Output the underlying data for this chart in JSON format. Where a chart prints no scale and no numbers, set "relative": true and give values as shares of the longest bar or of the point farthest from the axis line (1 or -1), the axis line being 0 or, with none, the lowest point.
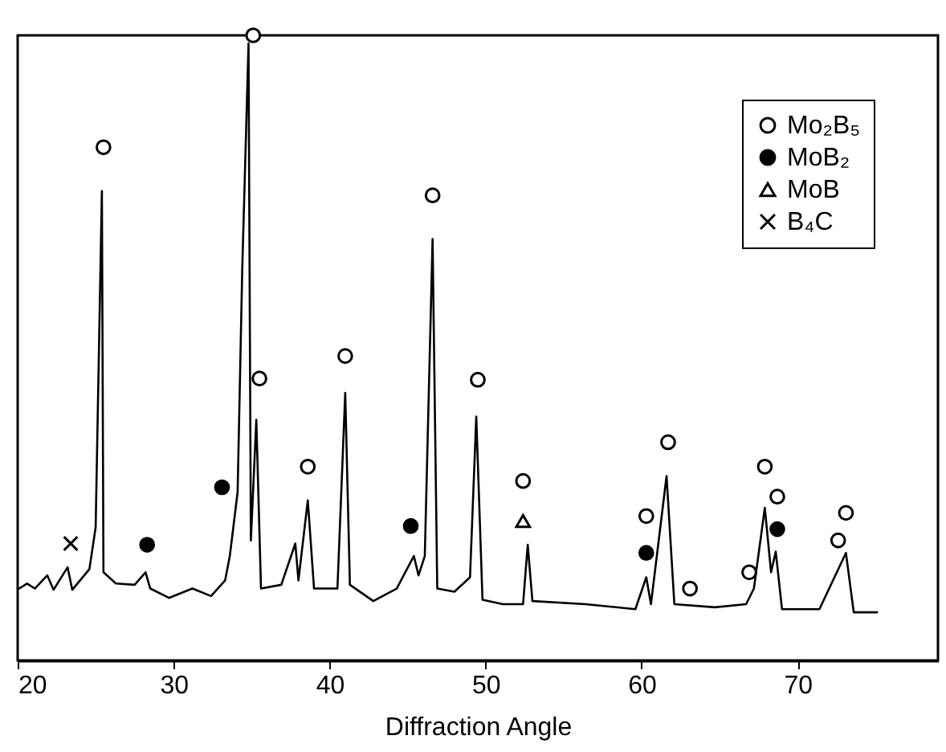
{
  "chart_data": {
    "type": "line",
    "xlabel": "Diffraction Angle",
    "relative": true,
    "xlim": [
      20,
      79
    ],
    "xticks": [
      20,
      30,
      40,
      50,
      60,
      70
    ],
    "grid": false,
    "legend": "top right",
    "series": [
      {
        "color": "#000000",
        "x": [
          20.1,
          20.6,
          21.1,
          21.9,
          22.3,
          23.2,
          23.5,
          24.6,
          25.0,
          25.4,
          25.5,
          26.3,
          27.5,
          28.2,
          28.5,
          29.7,
          31.2,
          32.4,
          33.3,
          33.6,
          34.1,
          34.4,
          34.8,
          34.95,
          35.3,
          35.6,
          36.9,
          37.8,
          38.0,
          38.6,
          39.0,
          40.5,
          41.0,
          41.3,
          42.8,
          44.3,
          45.4,
          45.7,
          46.1,
          46.6,
          46.9,
          48.0,
          49.0,
          49.4,
          49.8,
          51.1,
          52.4,
          52.7,
          53.0,
          56.4,
          59.6,
          60.3,
          60.6,
          61.6,
          62.1,
          64.7,
          66.7,
          67.2,
          67.9,
          68.3,
          68.6,
          69.0,
          71.4,
          73.1,
          73.6,
          75.1
        ],
        "values": [
          0.115,
          0.123,
          0.115,
          0.136,
          0.113,
          0.149,
          0.113,
          0.146,
          0.213,
          0.751,
          0.141,
          0.123,
          0.121,
          0.141,
          0.115,
          0.1,
          0.115,
          0.103,
          0.128,
          0.167,
          0.269,
          0.628,
          0.987,
          0.192,
          0.385,
          0.115,
          0.121,
          0.187,
          0.128,
          0.256,
          0.115,
          0.115,
          0.428,
          0.121,
          0.095,
          0.115,
          0.167,
          0.136,
          0.167,
          0.674,
          0.115,
          0.11,
          0.133,
          0.39,
          0.097,
          0.09,
          0.09,
          0.185,
          0.095,
          0.09,
          0.082,
          0.133,
          0.09,
          0.295,
          0.09,
          0.085,
          0.09,
          0.115,
          0.244,
          0.141,
          0.174,
          0.082,
          0.082,
          0.172,
          0.077,
          0.077
        ]
      },
      {
        "name": "Mo₂B₅",
        "type": "scatter",
        "marker": "circle",
        "color": "#ffffff",
        "x": [
          25.5,
          35.1,
          35.5,
          38.6,
          41.0,
          46.6,
          49.5,
          52.4,
          60.3,
          61.7,
          63.1,
          66.9,
          67.9,
          68.7,
          72.6,
          73.1
        ],
        "values": [
          0.821,
          1.0,
          0.451,
          0.31,
          0.487,
          0.744,
          0.449,
          0.287,
          0.231,
          0.349,
          0.115,
          0.141,
          0.31,
          0.262,
          0.192,
          0.236
        ]
      },
      {
        "name": "MoB₂",
        "type": "scatter",
        "marker": "circle",
        "color": "#000000",
        "x": [
          28.3,
          33.1,
          45.2,
          60.3,
          68.7
        ],
        "values": [
          0.185,
          0.277,
          0.215,
          0.172,
          0.21
        ]
      },
      {
        "name": "MoB",
        "type": "scatter",
        "marker": "triangle",
        "color": "#ffffff",
        "x": [
          52.4
        ],
        "values": [
          0.223
        ]
      },
      {
        "name": "B₄C",
        "type": "scatter",
        "marker": "cross",
        "color": "#000000",
        "x": [
          23.4
        ],
        "values": [
          0.187
        ]
      }
    ]
  }
}
